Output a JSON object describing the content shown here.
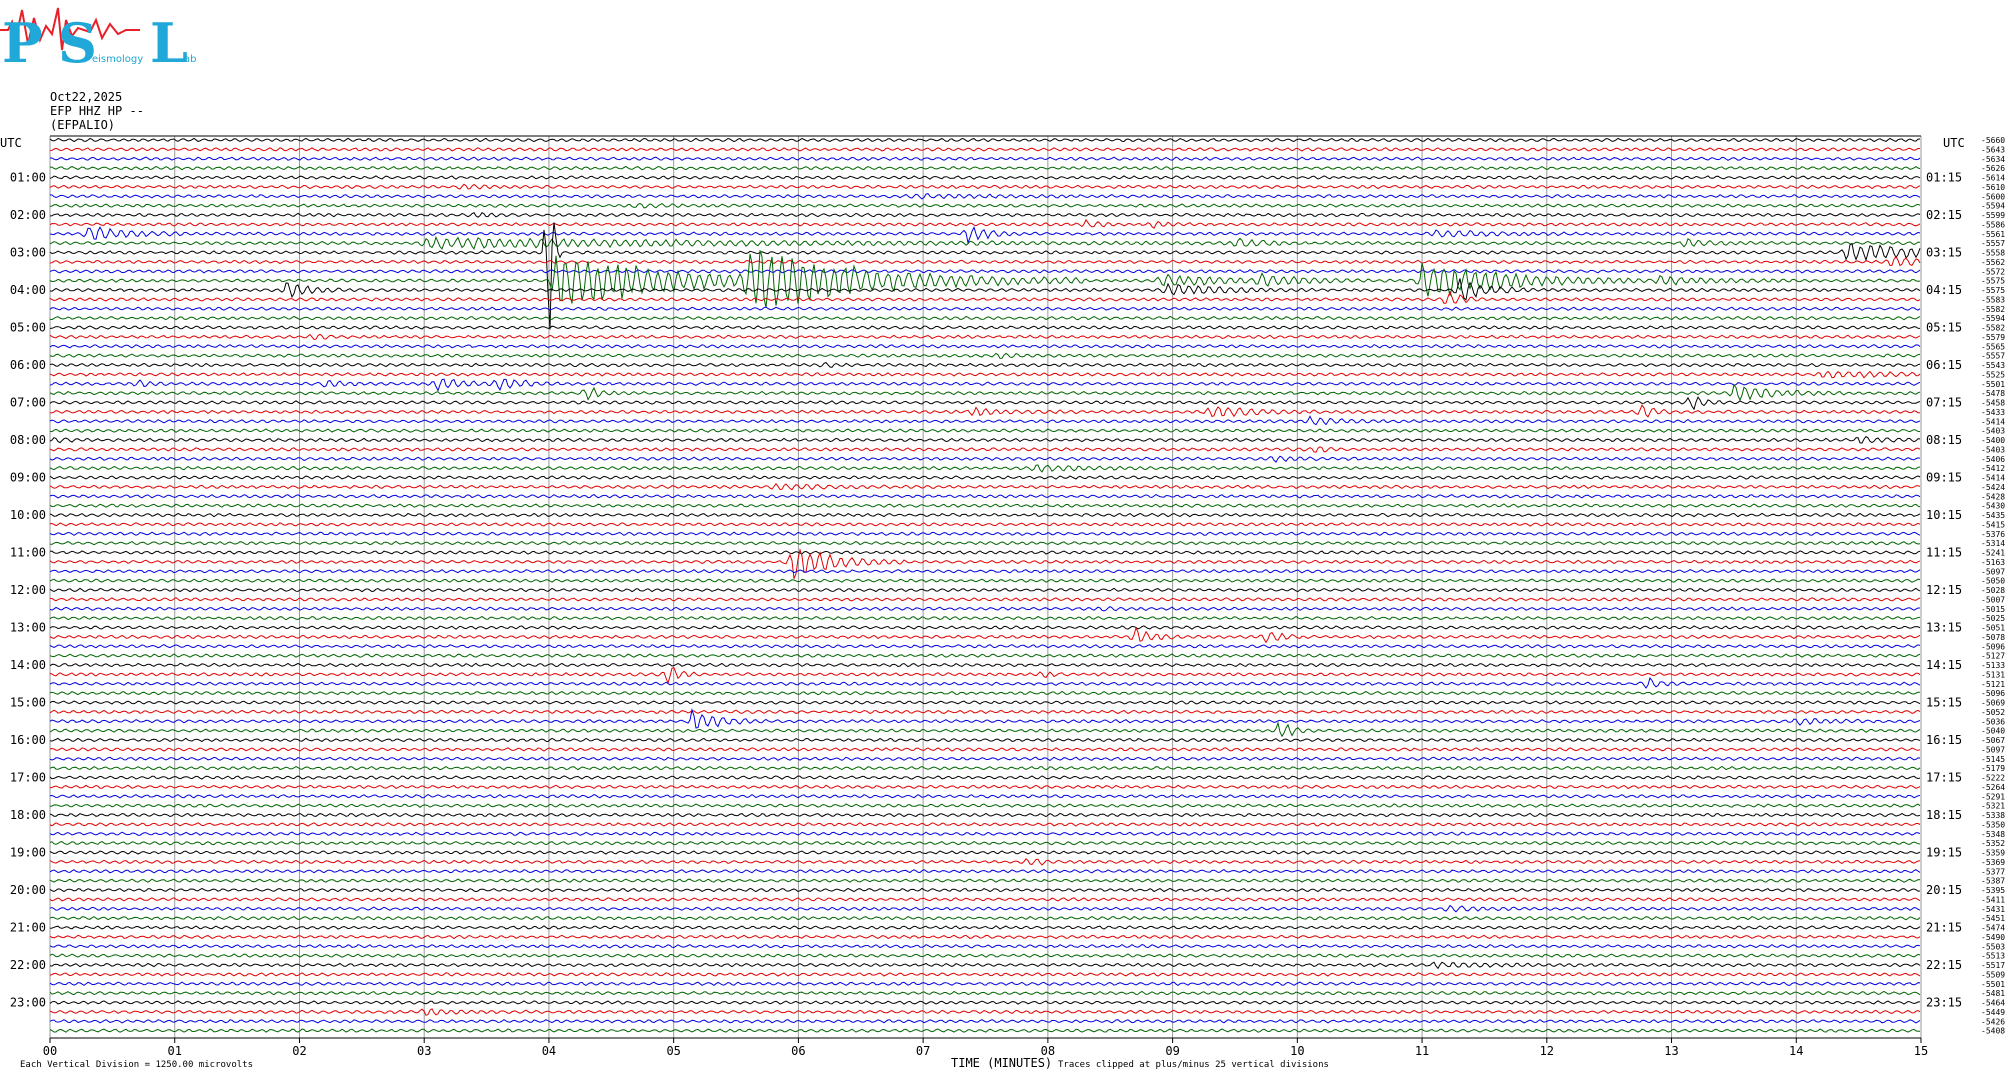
{
  "logo": {
    "big_letters": [
      "P",
      "S",
      "L"
    ],
    "small_words": [
      "eismology",
      "ab"
    ],
    "primary_color": "#1fa8d8",
    "accent_color": "#e8202a"
  },
  "header": {
    "date": "Oct22,2025",
    "channel": "EFP HHZ HP --",
    "station": "(EFPALIO)"
  },
  "chart_data": {
    "type": "seismogram",
    "xlabel": "TIME (MINUTES)",
    "xlim": [
      0,
      15
    ],
    "xticks": [
      "00",
      "01",
      "02",
      "03",
      "04",
      "05",
      "06",
      "07",
      "08",
      "09",
      "10",
      "11",
      "12",
      "13",
      "14",
      "15"
    ],
    "left_axis_title": "UTC",
    "right_axis_title": "UTC",
    "left_hour_labels": [
      "01:00",
      "02:00",
      "03:00",
      "04:00",
      "05:00",
      "06:00",
      "07:00",
      "08:00",
      "09:00",
      "10:00",
      "11:00",
      "12:00",
      "13:00",
      "14:00",
      "15:00",
      "16:00",
      "17:00",
      "18:00",
      "19:00",
      "20:00",
      "21:00",
      "22:00",
      "23:00"
    ],
    "right_hour_labels": [
      "01:15",
      "02:15",
      "03:15",
      "04:15",
      "05:15",
      "06:15",
      "07:15",
      "08:15",
      "09:15",
      "10:15",
      "11:15",
      "12:15",
      "13:15",
      "14:15",
      "15:15",
      "16:15",
      "17:15",
      "18:15",
      "19:15",
      "20:15",
      "21:15",
      "22:15",
      "23:15"
    ],
    "trace_colors": [
      "#000000",
      "#e00000",
      "#0000e0",
      "#006400"
    ],
    "trace_count": 96,
    "trace_offsets": [
      "-5660",
      "-5643",
      "-5634",
      "-5626",
      "-5614",
      "-5610",
      "-5600",
      "-5594",
      "-5599",
      "-5586",
      "-5561",
      "-5557",
      "-5558",
      "-5562",
      "-5572",
      "-5575",
      "-5575",
      "-5583",
      "-5582",
      "-5594",
      "-5582",
      "-5579",
      "-5565",
      "-5557",
      "-5543",
      "-5525",
      "-5501",
      "-5478",
      "-5458",
      "-5433",
      "-5414",
      "-5403",
      "-5400",
      "-5403",
      "-5406",
      "-5412",
      "-5414",
      "-5424",
      "-5428",
      "-5430",
      "-5435",
      "-5415",
      "-5376",
      "-5314",
      "-5241",
      "-5163",
      "-5097",
      "-5050",
      "-5028",
      "-5007",
      "-5015",
      "-5025",
      "-5051",
      "-5078",
      "-5096",
      "-5127",
      "-5133",
      "-5131",
      "-5121",
      "-5096",
      "-5069",
      "-5052",
      "-5036",
      "-5040",
      "-5067",
      "-5097",
      "-5145",
      "-5179",
      "-5222",
      "-5264",
      "-5291",
      "-5321",
      "-5338",
      "-5350",
      "-5348",
      "-5352",
      "-5359",
      "-5369",
      "-5377",
      "-5387",
      "-5395",
      "-5411",
      "-5431",
      "-5451",
      "-5474",
      "-5490",
      "-5503",
      "-5513",
      "-5517",
      "-5509",
      "-5501",
      "-5481",
      "-5464",
      "-5449",
      "-5426",
      "-5408"
    ],
    "noise_amplitude_divisions": 0.25,
    "clip_divisions": 25,
    "events": [
      {
        "trace": 5,
        "minute": 3.3,
        "amp": 0.5,
        "dur": 0.12
      },
      {
        "trace": 6,
        "minute": 6.9,
        "amp": 0.35,
        "dur": 0.6
      },
      {
        "trace": 7,
        "minute": 4.7,
        "amp": 0.4,
        "dur": 0.15
      },
      {
        "trace": 8,
        "minute": 3.4,
        "amp": 0.4,
        "dur": 0.1
      },
      {
        "trace": 9,
        "minute": 8.3,
        "amp": 0.7,
        "dur": 0.1
      },
      {
        "trace": 9,
        "minute": 8.85,
        "amp": 0.5,
        "dur": 0.1
      },
      {
        "trace": 10,
        "minute": 0.3,
        "amp": 1.3,
        "dur": 0.3
      },
      {
        "trace": 10,
        "minute": 7.35,
        "amp": 1.8,
        "dur": 0.15
      },
      {
        "trace": 10,
        "minute": 11.1,
        "amp": 0.7,
        "dur": 0.4
      },
      {
        "trace": 11,
        "minute": 3.0,
        "amp": 1.0,
        "dur": 2.3
      },
      {
        "trace": 11,
        "minute": 9.5,
        "amp": 0.8,
        "dur": 0.2
      },
      {
        "trace": 11,
        "minute": 13.1,
        "amp": 0.8,
        "dur": 0.2
      },
      {
        "trace": 12,
        "minute": 4.0,
        "amp": 25,
        "dur": 0.03
      },
      {
        "trace": 12,
        "minute": 14.4,
        "amp": 1.6,
        "dur": 0.8
      },
      {
        "trace": 13,
        "minute": 14.75,
        "amp": 1.0,
        "dur": 0.3
      },
      {
        "trace": 15,
        "minute": 4.05,
        "amp": 6,
        "dur": 0.8
      },
      {
        "trace": 15,
        "minute": 5.6,
        "amp": 6,
        "dur": 0.9
      },
      {
        "trace": 15,
        "minute": 11.0,
        "amp": 4,
        "dur": 0.6
      },
      {
        "trace": 15,
        "minute": 8.9,
        "amp": 1.2,
        "dur": 0.5
      },
      {
        "trace": 15,
        "minute": 9.7,
        "amp": 1.0,
        "dur": 0.3
      },
      {
        "trace": 15,
        "minute": 12.9,
        "amp": 0.8,
        "dur": 0.4
      },
      {
        "trace": 16,
        "minute": 1.9,
        "amp": 1.8,
        "dur": 0.15
      },
      {
        "trace": 16,
        "minute": 11.3,
        "amp": 2.2,
        "dur": 0.2
      },
      {
        "trace": 16,
        "minute": 8.95,
        "amp": 1.2,
        "dur": 0.4
      },
      {
        "trace": 17,
        "minute": 11.2,
        "amp": 1.8,
        "dur": 0.1
      },
      {
        "trace": 21,
        "minute": 2.1,
        "amp": 0.7,
        "dur": 0.1
      },
      {
        "trace": 23,
        "minute": 7.6,
        "amp": 0.4,
        "dur": 0.2
      },
      {
        "trace": 24,
        "minute": 6.2,
        "amp": 0.4,
        "dur": 0.1
      },
      {
        "trace": 25,
        "minute": 14.2,
        "amp": 0.6,
        "dur": 0.6
      },
      {
        "trace": 26,
        "minute": 3.1,
        "amp": 1.2,
        "dur": 0.2
      },
      {
        "trace": 26,
        "minute": 3.6,
        "amp": 1.1,
        "dur": 0.2
      },
      {
        "trace": 26,
        "minute": 0.7,
        "amp": 0.6,
        "dur": 0.1
      },
      {
        "trace": 26,
        "minute": 2.2,
        "amp": 0.6,
        "dur": 0.2
      },
      {
        "trace": 27,
        "minute": 4.3,
        "amp": 1.4,
        "dur": 0.1
      },
      {
        "trace": 27,
        "minute": 13.5,
        "amp": 1.5,
        "dur": 0.3
      },
      {
        "trace": 28,
        "minute": 13.15,
        "amp": 1.5,
        "dur": 0.1
      },
      {
        "trace": 29,
        "minute": 7.4,
        "amp": 0.7,
        "dur": 0.3
      },
      {
        "trace": 29,
        "minute": 9.3,
        "amp": 1.3,
        "dur": 0.3
      },
      {
        "trace": 29,
        "minute": 12.75,
        "amp": 1.3,
        "dur": 0.1
      },
      {
        "trace": 30,
        "minute": 10.1,
        "amp": 0.8,
        "dur": 0.2
      },
      {
        "trace": 32,
        "minute": 0.05,
        "amp": 0.5,
        "dur": 0.1
      },
      {
        "trace": 32,
        "minute": 14.5,
        "amp": 0.7,
        "dur": 0.2
      },
      {
        "trace": 33,
        "minute": 10.15,
        "amp": 0.6,
        "dur": 0.1
      },
      {
        "trace": 34,
        "minute": 9.8,
        "amp": 0.5,
        "dur": 0.2
      },
      {
        "trace": 35,
        "minute": 7.9,
        "amp": 0.7,
        "dur": 0.3
      },
      {
        "trace": 37,
        "minute": 5.8,
        "amp": 0.4,
        "dur": 0.5
      },
      {
        "trace": 45,
        "minute": 5.95,
        "amp": 3.5,
        "dur": 0.3
      },
      {
        "trace": 50,
        "minute": 8.4,
        "amp": 0.3,
        "dur": 0.2
      },
      {
        "trace": 53,
        "minute": 8.7,
        "amp": 1.5,
        "dur": 0.15
      },
      {
        "trace": 53,
        "minute": 9.75,
        "amp": 1.5,
        "dur": 0.1
      },
      {
        "trace": 57,
        "minute": 4.95,
        "amp": 1.7,
        "dur": 0.1
      },
      {
        "trace": 57,
        "minute": 7.95,
        "amp": 0.5,
        "dur": 0.1
      },
      {
        "trace": 58,
        "minute": 12.8,
        "amp": 1.3,
        "dur": 0.1
      },
      {
        "trace": 62,
        "minute": 5.15,
        "amp": 2.2,
        "dur": 0.2
      },
      {
        "trace": 62,
        "minute": 14.0,
        "amp": 0.5,
        "dur": 0.3
      },
      {
        "trace": 63,
        "minute": 9.85,
        "amp": 2.0,
        "dur": 0.1
      },
      {
        "trace": 77,
        "minute": 7.85,
        "amp": 0.8,
        "dur": 0.1
      },
      {
        "trace": 82,
        "minute": 11.2,
        "amp": 0.6,
        "dur": 0.2
      },
      {
        "trace": 88,
        "minute": 11.1,
        "amp": 0.4,
        "dur": 0.5
      },
      {
        "trace": 93,
        "minute": 3.0,
        "amp": 0.7,
        "dur": 0.2
      }
    ]
  },
  "footer": {
    "vertical_division": "Each Vertical Division = 1250.00 microvolts",
    "clip_note": "Traces clipped at plus/minus 25 vertical divisions"
  }
}
